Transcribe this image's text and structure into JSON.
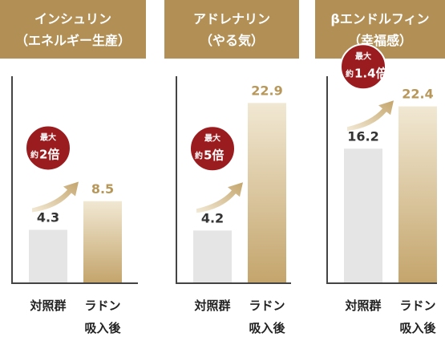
{
  "chart_data": [
    {
      "type": "bar",
      "title": "インシュリン",
      "subtitle": "（エネルギー生産）",
      "categories": [
        [
          "対照群"
        ],
        [
          "ラドン",
          "吸入後"
        ]
      ],
      "values": [
        4.3,
        8.5
      ],
      "colors": [
        "#e5e5e5",
        "#c9ad74"
      ],
      "badge": [
        "最大",
        "約",
        "2倍"
      ]
    },
    {
      "type": "bar",
      "title": "アドレナリン",
      "subtitle": "（やる気）",
      "categories": [
        [
          "対照群"
        ],
        [
          "ラドン",
          "吸入後"
        ]
      ],
      "values": [
        4.2,
        22.9
      ],
      "colors": [
        "#e5e5e5",
        "#c9ad74"
      ],
      "badge": [
        "最大",
        "約",
        "5倍"
      ]
    },
    {
      "type": "bar",
      "title": "βエンドルフィン",
      "subtitle": "（幸福感）",
      "categories": [
        [
          "対照群"
        ],
        [
          "ラドン",
          "吸入後"
        ]
      ],
      "values": [
        16.2,
        22.4
      ],
      "colors": [
        "#e5e5e5",
        "#c9ad74"
      ],
      "badge": [
        "最大",
        "約",
        "1.4倍"
      ]
    }
  ]
}
